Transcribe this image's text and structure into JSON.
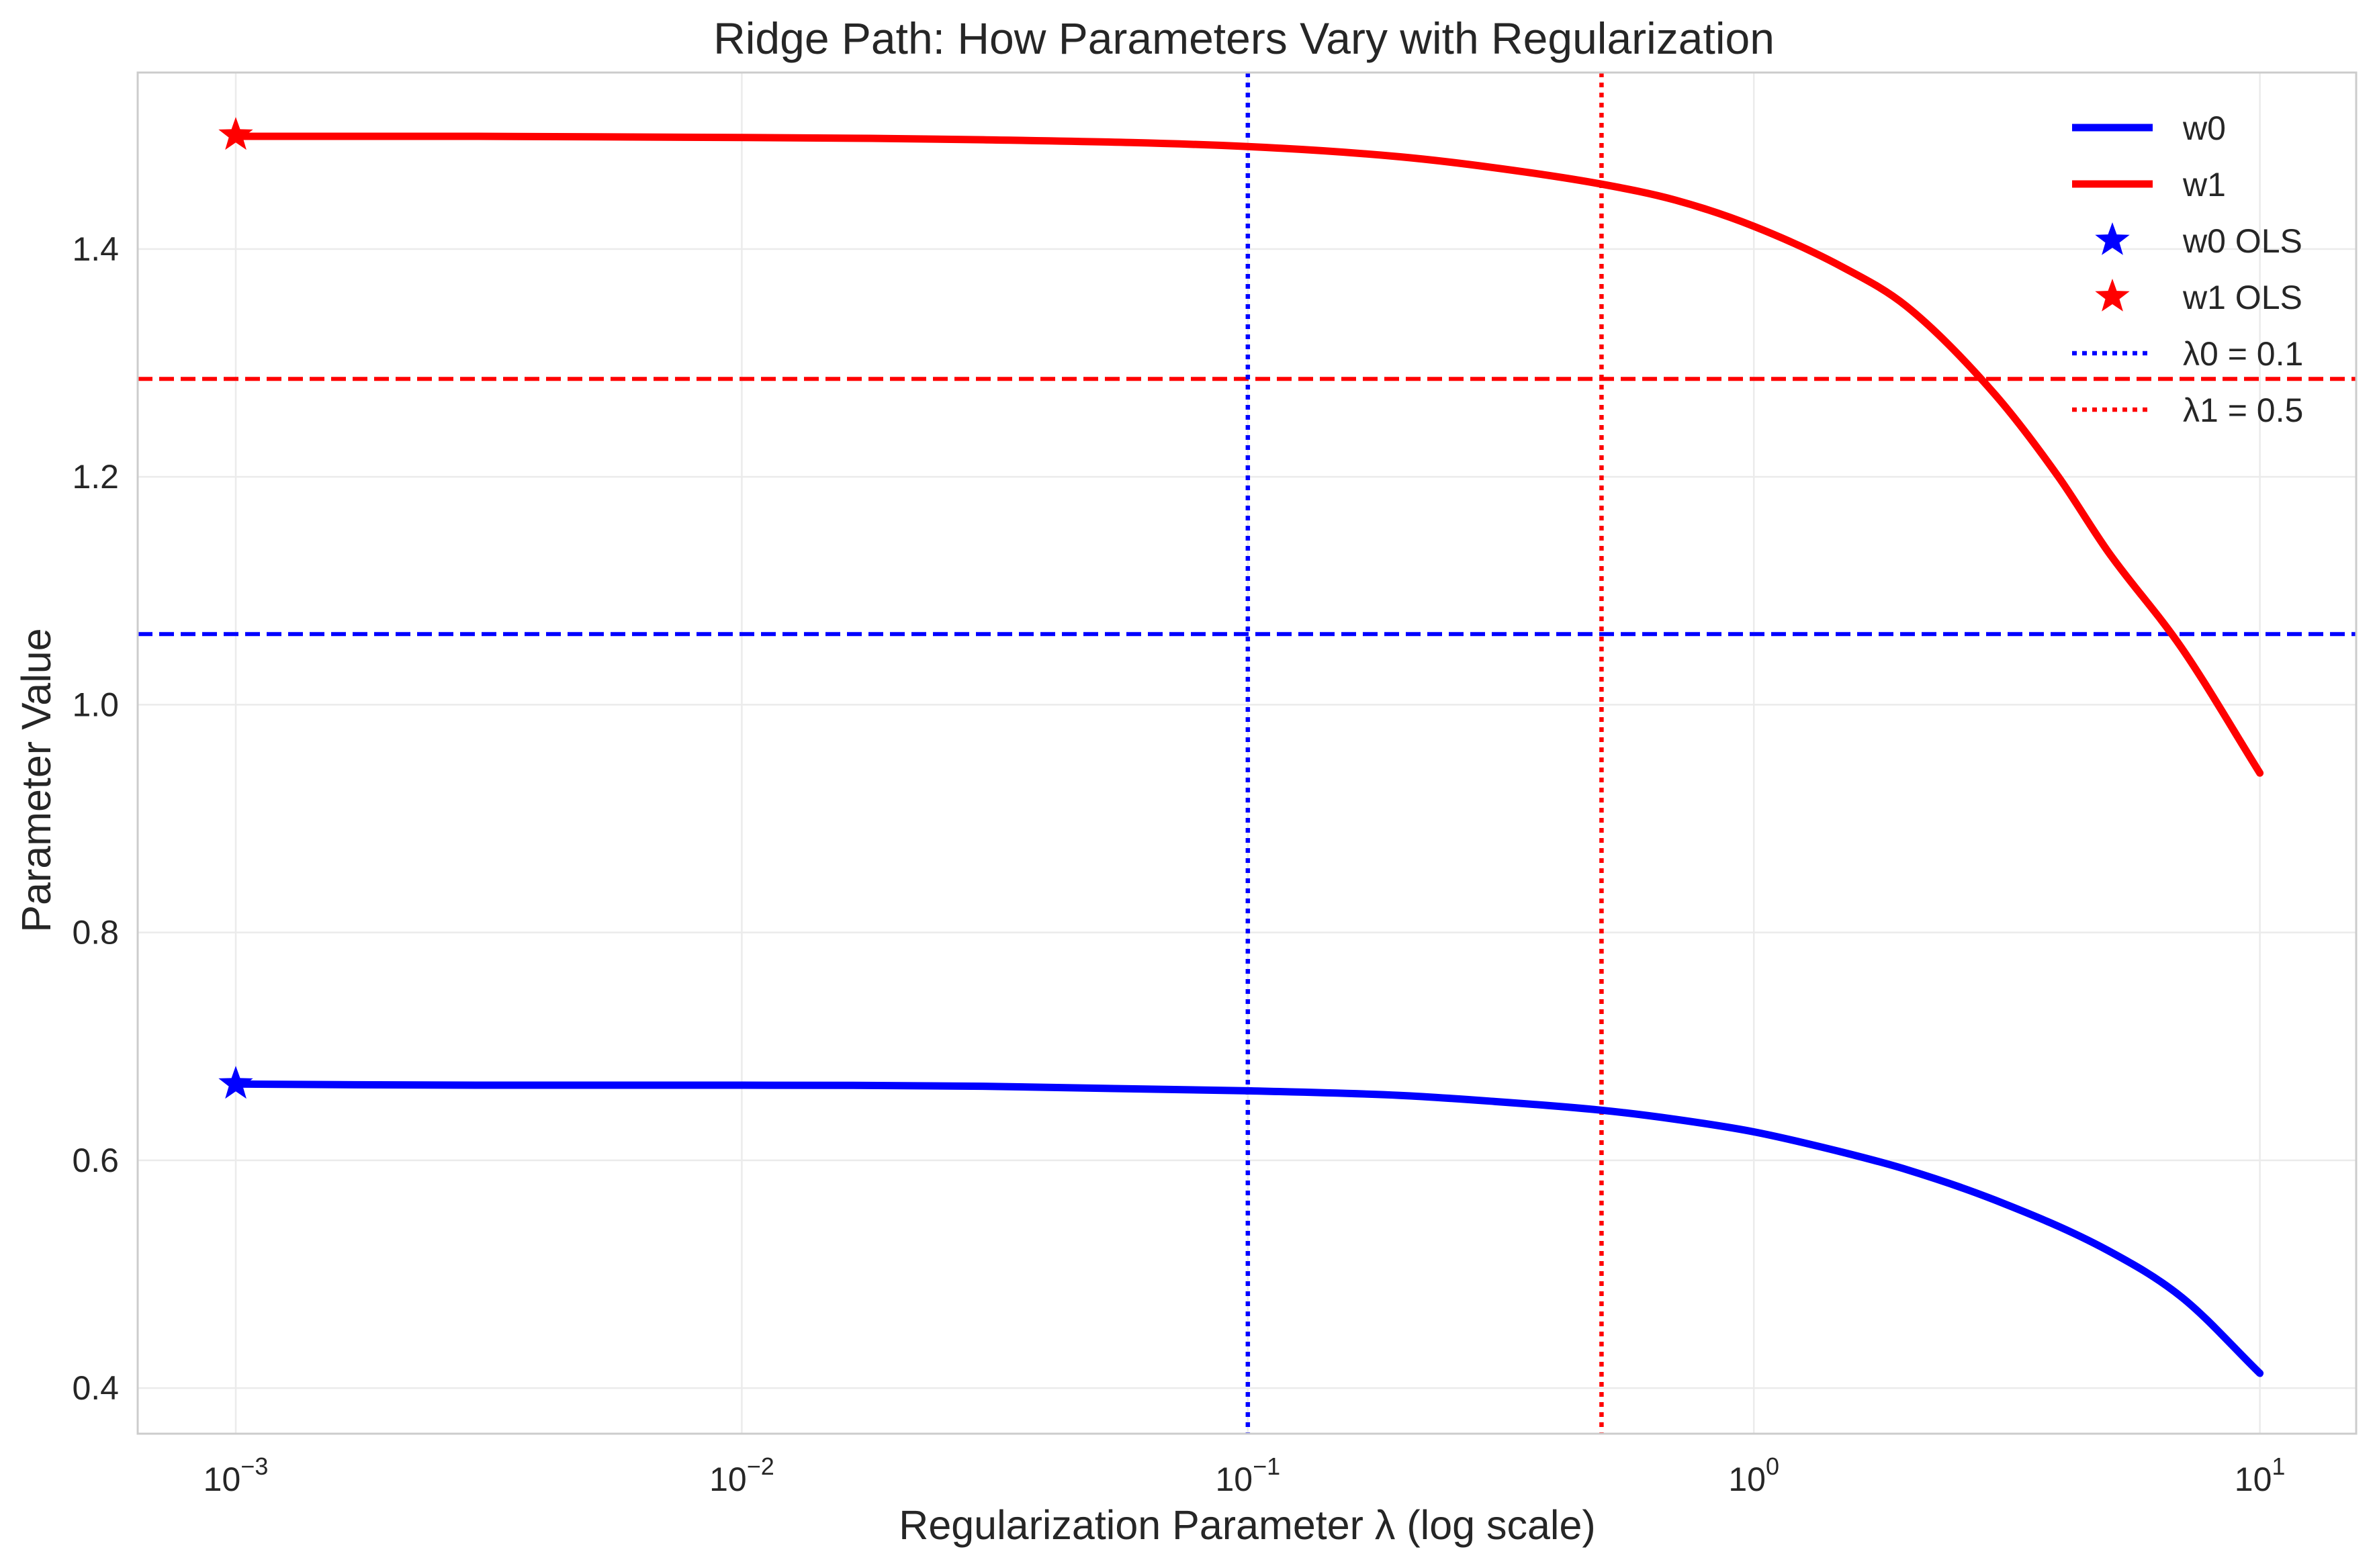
{
  "chart_data": {
    "type": "line",
    "title": "Ridge Path: How Parameters Vary with Regularization",
    "xlabel": "Regularization Parameter λ (log scale)",
    "ylabel": "Parameter Value",
    "xscale": "log",
    "xlim": [
      0.00064,
      15.5
    ],
    "ylim": [
      0.36,
      1.555
    ],
    "xticks": [
      {
        "value": 0.001,
        "base": "10",
        "exp": "−3"
      },
      {
        "value": 0.01,
        "base": "10",
        "exp": "−2"
      },
      {
        "value": 0.1,
        "base": "10",
        "exp": "−1"
      },
      {
        "value": 1,
        "base": "10",
        "exp": "0"
      },
      {
        "value": 10,
        "base": "10",
        "exp": "1"
      }
    ],
    "yticks": [
      {
        "value": 0.4,
        "label": "0.4"
      },
      {
        "value": 0.6,
        "label": "0.6"
      },
      {
        "value": 0.8,
        "label": "0.8"
      },
      {
        "value": 1.0,
        "label": "1.0"
      },
      {
        "value": 1.2,
        "label": "1.2"
      },
      {
        "value": 1.4,
        "label": "1.4"
      }
    ],
    "grid": true,
    "legend_position": "top-right",
    "series": [
      {
        "name": "w0",
        "color": "#0000ff",
        "x": [
          0.001,
          0.003,
          0.01,
          0.03,
          0.1,
          0.2,
          0.3,
          0.5,
          0.7,
          1,
          1.5,
          2,
          3,
          5,
          7,
          10
        ],
        "y": [
          0.667,
          0.666,
          0.666,
          0.665,
          0.661,
          0.657,
          0.652,
          0.644,
          0.636,
          0.625,
          0.607,
          0.592,
          0.565,
          0.521,
          0.48,
          0.413
        ]
      },
      {
        "name": "w1",
        "color": "#ff0000",
        "x": [
          0.001,
          0.003,
          0.01,
          0.03,
          0.1,
          0.2,
          0.3,
          0.5,
          0.7,
          1,
          1.5,
          2,
          3,
          4,
          5,
          7,
          10
        ],
        "y": [
          1.499,
          1.499,
          1.498,
          1.496,
          1.49,
          1.481,
          1.472,
          1.457,
          1.443,
          1.42,
          1.384,
          1.35,
          1.272,
          1.2,
          1.135,
          1.05,
          0.94
        ]
      }
    ],
    "markers": [
      {
        "name": "w0 OLS",
        "x": 0.001,
        "y": 0.667,
        "color": "#0000ff",
        "symbol": "star"
      },
      {
        "name": "w1 OLS",
        "x": 0.001,
        "y": 1.5,
        "color": "#ff0000",
        "symbol": "star"
      }
    ],
    "vlines": [
      {
        "name": "λ0 = 0.1",
        "x": 0.1,
        "color": "#0000ff",
        "style": "dotted"
      },
      {
        "name": "λ1 = 0.5",
        "x": 0.5,
        "color": "#ff0000",
        "style": "dotted"
      }
    ],
    "hlines": [
      {
        "y": 1.062,
        "color": "#0000ff",
        "style": "dashed"
      },
      {
        "y": 1.286,
        "color": "#ff0000",
        "style": "dashed"
      }
    ]
  }
}
